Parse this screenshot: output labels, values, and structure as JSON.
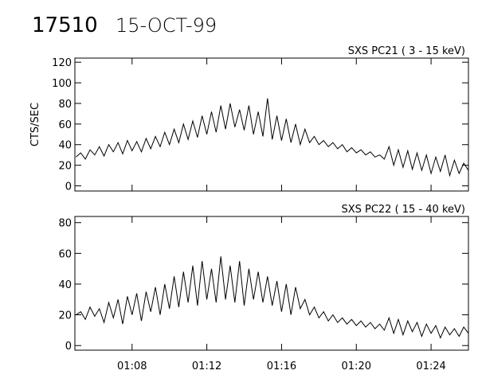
{
  "header": {
    "id": "17510",
    "date": "15-OCT-99"
  },
  "chart_data": [
    {
      "type": "line",
      "title": "SXS PC21  (  3 - 15 keV)",
      "ylabel": "CTS/SEC",
      "color": "#000000",
      "x": [
        5,
        5.25,
        5.5,
        5.75,
        6,
        6.25,
        6.5,
        6.75,
        7,
        7.25,
        7.5,
        7.75,
        8,
        8.25,
        8.5,
        8.75,
        9,
        9.25,
        9.5,
        9.75,
        10,
        10.25,
        10.5,
        10.75,
        11,
        11.25,
        11.5,
        11.75,
        12,
        12.25,
        12.5,
        12.75,
        13,
        13.25,
        13.5,
        13.75,
        14,
        14.25,
        14.5,
        14.75,
        15,
        15.25,
        15.5,
        15.75,
        16,
        16.25,
        16.5,
        16.75,
        17,
        17.25,
        17.5,
        17.75,
        18,
        18.25,
        18.5,
        18.75,
        19,
        19.25,
        19.5,
        19.75,
        20,
        20.25,
        20.5,
        20.75,
        21,
        21.25,
        21.5,
        21.75,
        22,
        22.25,
        22.5,
        22.75,
        23,
        23.25,
        23.5,
        23.75,
        24,
        24.25,
        24.5,
        24.75,
        25,
        25.25,
        25.5,
        25.75,
        26
      ],
      "values": [
        28,
        32,
        26,
        35,
        30,
        38,
        29,
        40,
        33,
        42,
        31,
        44,
        34,
        43,
        33,
        46,
        36,
        48,
        38,
        52,
        40,
        55,
        42,
        60,
        45,
        63,
        47,
        68,
        50,
        72,
        52,
        78,
        55,
        80,
        57,
        74,
        54,
        78,
        50,
        72,
        48,
        85,
        45,
        68,
        44,
        65,
        42,
        60,
        40,
        55,
        42,
        48,
        40,
        44,
        38,
        42,
        36,
        40,
        33,
        37,
        32,
        35,
        30,
        33,
        28,
        30,
        26,
        38,
        20,
        35,
        18,
        34,
        16,
        32,
        15,
        30,
        12,
        28,
        14,
        30,
        10,
        25,
        12,
        22,
        15
      ],
      "xlim": [
        4.94,
        26
      ],
      "xticks": [
        8,
        12,
        16,
        20,
        24
      ],
      "ylim": [
        -5,
        124
      ],
      "yticks": [
        0,
        20,
        40,
        60,
        80,
        100,
        120
      ]
    },
    {
      "type": "line",
      "title": "SXS PC22  ( 15 - 40 keV)",
      "color": "#000000",
      "x": [
        5,
        5.25,
        5.5,
        5.75,
        6,
        6.25,
        6.5,
        6.75,
        7,
        7.25,
        7.5,
        7.75,
        8,
        8.25,
        8.5,
        8.75,
        9,
        9.25,
        9.5,
        9.75,
        10,
        10.25,
        10.5,
        10.75,
        11,
        11.25,
        11.5,
        11.75,
        12,
        12.25,
        12.5,
        12.75,
        13,
        13.25,
        13.5,
        13.75,
        14,
        14.25,
        14.5,
        14.75,
        15,
        15.25,
        15.5,
        15.75,
        16,
        16.25,
        16.5,
        16.75,
        17,
        17.25,
        17.5,
        17.75,
        18,
        18.25,
        18.5,
        18.75,
        19,
        19.25,
        19.5,
        19.75,
        20,
        20.25,
        20.5,
        20.75,
        21,
        21.25,
        21.5,
        21.75,
        22,
        22.25,
        22.5,
        22.75,
        23,
        23.25,
        23.5,
        23.75,
        24,
        24.25,
        24.5,
        24.75,
        25,
        25.25,
        25.5,
        25.75,
        26
      ],
      "values": [
        20,
        22,
        17,
        25,
        19,
        24,
        15,
        28,
        18,
        30,
        14,
        32,
        20,
        34,
        16,
        35,
        22,
        38,
        20,
        40,
        24,
        45,
        25,
        48,
        28,
        52,
        26,
        55,
        30,
        50,
        28,
        58,
        30,
        52,
        28,
        55,
        26,
        50,
        30,
        48,
        28,
        45,
        26,
        42,
        22,
        40,
        20,
        38,
        24,
        30,
        20,
        25,
        18,
        22,
        16,
        20,
        15,
        18,
        14,
        17,
        13,
        16,
        12,
        15,
        11,
        14,
        10,
        18,
        8,
        17,
        7,
        16,
        9,
        15,
        6,
        14,
        8,
        13,
        5,
        12,
        7,
        11,
        6,
        12,
        8
      ],
      "xlim": [
        4.94,
        26
      ],
      "xticks": [
        {
          "value": 8,
          "label": "01:08"
        },
        {
          "value": 12,
          "label": "01:12"
        },
        {
          "value": 16,
          "label": "01:16"
        },
        {
          "value": 20,
          "label": "01:20"
        },
        {
          "value": 24,
          "label": "01:24"
        }
      ],
      "ylim": [
        -3,
        84
      ],
      "yticks": [
        0,
        20,
        40,
        60,
        80
      ]
    }
  ]
}
